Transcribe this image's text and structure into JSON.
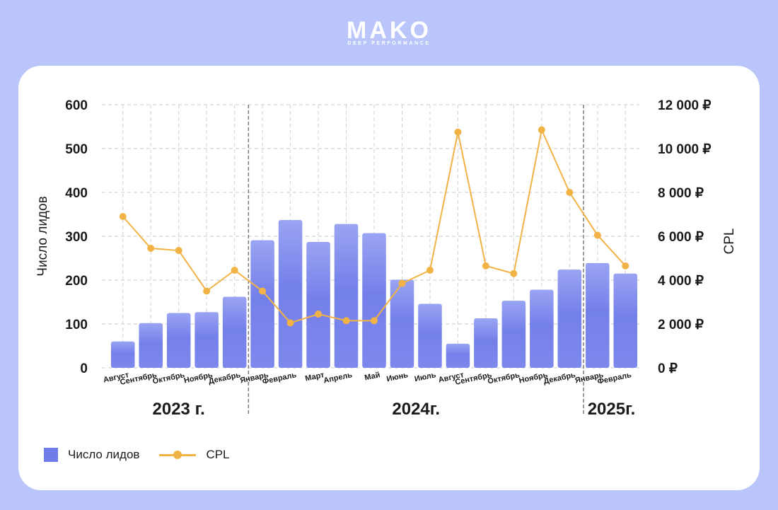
{
  "brand": {
    "name": "MAKO",
    "tagline": "DEEP PERFORMANCE"
  },
  "chart_data": {
    "type": "bar",
    "categories": [
      "Август",
      "Сентябрь",
      "Октябрь",
      "Ноябрь",
      "Декабрь",
      "Январь",
      "Февраль",
      "Март",
      "Апрель",
      "Май",
      "Июнь",
      "Июль",
      "Август",
      "Сентябрь",
      "Октябрь",
      "Ноябрь",
      "Декабрь",
      "Январь",
      "Февраль"
    ],
    "series": [
      {
        "name": "Число лидов",
        "type": "bar",
        "axis": "left",
        "color": "#6f7de9",
        "values": [
          60,
          102,
          125,
          127,
          162,
          291,
          337,
          287,
          328,
          307,
          201,
          146,
          55,
          113,
          153,
          178,
          224,
          239,
          215
        ]
      },
      {
        "name": "CPL",
        "type": "line",
        "axis": "right",
        "color": "#f2b346",
        "values": [
          6900,
          5450,
          5350,
          3500,
          4450,
          3500,
          2050,
          2450,
          2150,
          2150,
          3850,
          4450,
          10750,
          4650,
          4300,
          10850,
          8000,
          6050,
          4650
        ]
      }
    ],
    "ylabel": "Число лидов",
    "y2label": "CPL",
    "ylim": [
      0,
      600
    ],
    "yticks": [
      "0",
      "100",
      "200",
      "300",
      "400",
      "500",
      "600"
    ],
    "y2lim": [
      0,
      12000
    ],
    "y2ticks": [
      "0 ₽",
      "2 000 ₽",
      "4 000 ₽",
      "6 000 ₽",
      "8 000 ₽",
      "10 000 ₽",
      "12 000 ₽"
    ],
    "groups": [
      {
        "label": "2023 г.",
        "count": 5
      },
      {
        "label": "2024г.",
        "count": 12
      },
      {
        "label": "2025г.",
        "count": 2
      }
    ],
    "grid": true,
    "legend": "bottom-left"
  }
}
